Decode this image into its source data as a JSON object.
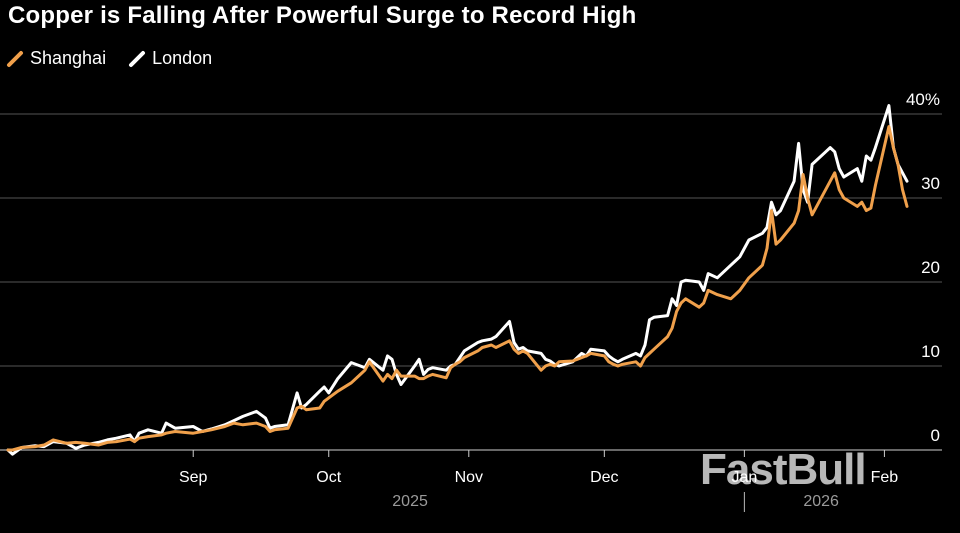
{
  "title": "Copper is Falling After Powerful Surge to Record High",
  "legend": [
    {
      "label": "Shanghai",
      "color": "#f0a04b"
    },
    {
      "label": "London",
      "color": "#ffffff"
    }
  ],
  "watermark": "FastBull",
  "chart_data": {
    "type": "line",
    "title": "Copper is Falling After Powerful Surge to Record High",
    "xlabel": "",
    "ylabel": "",
    "y_unit": "%",
    "ylim": [
      -2,
      42
    ],
    "y_ticks": [
      0,
      10,
      20,
      30,
      40
    ],
    "y_tick_labels": [
      "0",
      "10",
      "20",
      "30",
      "40%"
    ],
    "x_range": [
      "2025-07-22",
      "2026-02-06"
    ],
    "x_ticks": [
      {
        "date": "2025-09-01",
        "label": "Sep"
      },
      {
        "date": "2025-10-01",
        "label": "Oct"
      },
      {
        "date": "2025-11-01",
        "label": "Nov"
      },
      {
        "date": "2025-12-01",
        "label": "Dec"
      },
      {
        "date": "2026-01-01",
        "label": "Jan"
      },
      {
        "date": "2026-02-01",
        "label": "Feb"
      }
    ],
    "year_labels": [
      {
        "date": "2025-10-19",
        "label": "2025"
      },
      {
        "date": "2026-01-18",
        "label": "2026"
      }
    ],
    "year_divider": "2026-01-01",
    "grid": true,
    "series": [
      {
        "name": "London",
        "color": "#ffffff",
        "points": [
          [
            "2025-07-22",
            0
          ],
          [
            "2025-07-23",
            -0.5
          ],
          [
            "2025-07-25",
            0.3
          ],
          [
            "2025-07-28",
            0.5
          ],
          [
            "2025-07-30",
            0.4
          ],
          [
            "2025-08-01",
            1.0
          ],
          [
            "2025-08-04",
            0.8
          ],
          [
            "2025-08-06",
            0.2
          ],
          [
            "2025-08-08",
            0.6
          ],
          [
            "2025-08-11",
            0.9
          ],
          [
            "2025-08-13",
            1.2
          ],
          [
            "2025-08-15",
            1.4
          ],
          [
            "2025-08-18",
            1.8
          ],
          [
            "2025-08-19",
            1.0
          ],
          [
            "2025-08-20",
            2.0
          ],
          [
            "2025-08-22",
            2.4
          ],
          [
            "2025-08-25",
            2.0
          ],
          [
            "2025-08-26",
            3.2
          ],
          [
            "2025-08-28",
            2.6
          ],
          [
            "2025-09-01",
            2.8
          ],
          [
            "2025-09-03",
            2.2
          ],
          [
            "2025-09-05",
            2.5
          ],
          [
            "2025-09-08",
            3.0
          ],
          [
            "2025-09-10",
            3.5
          ],
          [
            "2025-09-12",
            4.0
          ],
          [
            "2025-09-15",
            4.6
          ],
          [
            "2025-09-17",
            3.8
          ],
          [
            "2025-09-18",
            2.6
          ],
          [
            "2025-09-19",
            2.8
          ],
          [
            "2025-09-22",
            3.0
          ],
          [
            "2025-09-24",
            6.8
          ],
          [
            "2025-09-25",
            5.0
          ],
          [
            "2025-09-26",
            5.4
          ],
          [
            "2025-09-29",
            7.0
          ],
          [
            "2025-09-30",
            7.5
          ],
          [
            "2025-10-01",
            6.8
          ],
          [
            "2025-10-03",
            8.5
          ],
          [
            "2025-10-06",
            10.4
          ],
          [
            "2025-10-08",
            10.0
          ],
          [
            "2025-10-09",
            9.8
          ],
          [
            "2025-10-10",
            10.8
          ],
          [
            "2025-10-13",
            9.5
          ],
          [
            "2025-10-14",
            11.2
          ],
          [
            "2025-10-15",
            10.8
          ],
          [
            "2025-10-16",
            9.0
          ],
          [
            "2025-10-17",
            7.8
          ],
          [
            "2025-10-20",
            10.0
          ],
          [
            "2025-10-21",
            10.8
          ],
          [
            "2025-10-22",
            9.0
          ],
          [
            "2025-10-23",
            9.6
          ],
          [
            "2025-10-24",
            9.8
          ],
          [
            "2025-10-27",
            9.5
          ],
          [
            "2025-10-28",
            10.0
          ],
          [
            "2025-10-29",
            10.2
          ],
          [
            "2025-10-30",
            11.0
          ],
          [
            "2025-10-31",
            11.8
          ],
          [
            "2025-11-03",
            12.8
          ],
          [
            "2025-11-04",
            13.0
          ],
          [
            "2025-11-06",
            13.2
          ],
          [
            "2025-11-07",
            13.5
          ],
          [
            "2025-11-10",
            15.3
          ],
          [
            "2025-11-11",
            12.8
          ],
          [
            "2025-11-12",
            12.0
          ],
          [
            "2025-11-13",
            12.2
          ],
          [
            "2025-11-14",
            11.8
          ],
          [
            "2025-11-17",
            11.5
          ],
          [
            "2025-11-18",
            10.8
          ],
          [
            "2025-11-19",
            10.6
          ],
          [
            "2025-11-20",
            10.2
          ],
          [
            "2025-11-21",
            10.0
          ],
          [
            "2025-11-24",
            10.5
          ],
          [
            "2025-11-25",
            11.0
          ],
          [
            "2025-11-26",
            11.5
          ],
          [
            "2025-11-27",
            11.2
          ],
          [
            "2025-11-28",
            12.0
          ],
          [
            "2025-12-01",
            11.8
          ],
          [
            "2025-12-02",
            11.2
          ],
          [
            "2025-12-03",
            10.8
          ],
          [
            "2025-12-04",
            10.5
          ],
          [
            "2025-12-05",
            10.8
          ],
          [
            "2025-12-08",
            11.5
          ],
          [
            "2025-12-09",
            11.2
          ],
          [
            "2025-12-10",
            12.5
          ],
          [
            "2025-12-11",
            15.5
          ],
          [
            "2025-12-12",
            15.8
          ],
          [
            "2025-12-15",
            16.0
          ],
          [
            "2025-12-16",
            18.0
          ],
          [
            "2025-12-17",
            17.2
          ],
          [
            "2025-12-18",
            20.0
          ],
          [
            "2025-12-19",
            20.2
          ],
          [
            "2025-12-22",
            20.0
          ],
          [
            "2025-12-23",
            19.0
          ],
          [
            "2025-12-24",
            21.0
          ],
          [
            "2025-12-26",
            20.5
          ],
          [
            "2025-12-29",
            22.0
          ],
          [
            "2025-12-30",
            22.5
          ],
          [
            "2025-12-31",
            23.0
          ],
          [
            "2026-01-02",
            25.0
          ],
          [
            "2026-01-05",
            25.8
          ],
          [
            "2026-01-06",
            26.5
          ],
          [
            "2026-01-07",
            29.5
          ],
          [
            "2026-01-08",
            28.0
          ],
          [
            "2026-01-09",
            28.5
          ],
          [
            "2026-01-12",
            32.0
          ],
          [
            "2026-01-13",
            36.5
          ],
          [
            "2026-01-14",
            31.0
          ],
          [
            "2026-01-15",
            29.5
          ],
          [
            "2026-01-16",
            34.0
          ],
          [
            "2026-01-19",
            35.5
          ],
          [
            "2026-01-20",
            36.0
          ],
          [
            "2026-01-21",
            35.5
          ],
          [
            "2026-01-22",
            33.5
          ],
          [
            "2026-01-23",
            32.5
          ],
          [
            "2026-01-26",
            33.5
          ],
          [
            "2026-01-27",
            32.0
          ],
          [
            "2026-01-28",
            35.0
          ],
          [
            "2026-01-29",
            34.5
          ],
          [
            "2026-01-30",
            36.0
          ],
          [
            "2026-02-02",
            41.0
          ],
          [
            "2026-02-03",
            36.0
          ],
          [
            "2026-02-04",
            34.0
          ],
          [
            "2026-02-05",
            33.0
          ],
          [
            "2026-02-06",
            32.0
          ]
        ]
      },
      {
        "name": "Shanghai",
        "color": "#f0a04b",
        "points": [
          [
            "2025-07-22",
            0
          ],
          [
            "2025-07-23",
            0.0
          ],
          [
            "2025-07-25",
            0.3
          ],
          [
            "2025-07-28",
            0.4
          ],
          [
            "2025-07-30",
            0.6
          ],
          [
            "2025-08-01",
            1.2
          ],
          [
            "2025-08-04",
            0.8
          ],
          [
            "2025-08-06",
            0.9
          ],
          [
            "2025-08-08",
            0.8
          ],
          [
            "2025-08-11",
            0.6
          ],
          [
            "2025-08-13",
            0.9
          ],
          [
            "2025-08-15",
            1.0
          ],
          [
            "2025-08-18",
            1.3
          ],
          [
            "2025-08-19",
            1.0
          ],
          [
            "2025-08-20",
            1.4
          ],
          [
            "2025-08-22",
            1.6
          ],
          [
            "2025-08-25",
            1.8
          ],
          [
            "2025-08-26",
            2.0
          ],
          [
            "2025-08-28",
            2.2
          ],
          [
            "2025-09-01",
            2.0
          ],
          [
            "2025-09-03",
            2.2
          ],
          [
            "2025-09-05",
            2.4
          ],
          [
            "2025-09-08",
            2.8
          ],
          [
            "2025-09-10",
            3.2
          ],
          [
            "2025-09-12",
            3.0
          ],
          [
            "2025-09-15",
            3.2
          ],
          [
            "2025-09-17",
            2.8
          ],
          [
            "2025-09-18",
            2.2
          ],
          [
            "2025-09-19",
            2.4
          ],
          [
            "2025-09-22",
            2.6
          ],
          [
            "2025-09-24",
            5.0
          ],
          [
            "2025-09-25",
            5.2
          ],
          [
            "2025-09-26",
            4.8
          ],
          [
            "2025-09-29",
            5.0
          ],
          [
            "2025-09-30",
            5.8
          ],
          [
            "2025-10-01",
            6.2
          ],
          [
            "2025-10-03",
            7.0
          ],
          [
            "2025-10-06",
            8.0
          ],
          [
            "2025-10-08",
            9.0
          ],
          [
            "2025-10-09",
            9.5
          ],
          [
            "2025-10-10",
            10.5
          ],
          [
            "2025-10-13",
            8.2
          ],
          [
            "2025-10-14",
            9.0
          ],
          [
            "2025-10-15",
            8.5
          ],
          [
            "2025-10-16",
            9.5
          ],
          [
            "2025-10-17",
            8.8
          ],
          [
            "2025-10-20",
            8.8
          ],
          [
            "2025-10-21",
            8.5
          ],
          [
            "2025-10-22",
            8.5
          ],
          [
            "2025-10-23",
            8.8
          ],
          [
            "2025-10-24",
            9.0
          ],
          [
            "2025-10-27",
            8.6
          ],
          [
            "2025-10-28",
            9.8
          ],
          [
            "2025-10-29",
            10.2
          ],
          [
            "2025-10-30",
            10.5
          ],
          [
            "2025-10-31",
            11.0
          ],
          [
            "2025-11-03",
            11.8
          ],
          [
            "2025-11-04",
            12.2
          ],
          [
            "2025-11-06",
            12.5
          ],
          [
            "2025-11-07",
            12.2
          ],
          [
            "2025-11-10",
            13.0
          ],
          [
            "2025-11-11",
            12.0
          ],
          [
            "2025-11-12",
            11.5
          ],
          [
            "2025-11-13",
            11.8
          ],
          [
            "2025-11-14",
            11.5
          ],
          [
            "2025-11-17",
            9.5
          ],
          [
            "2025-11-18",
            10.0
          ],
          [
            "2025-11-19",
            10.2
          ],
          [
            "2025-11-20",
            10.0
          ],
          [
            "2025-11-21",
            10.5
          ],
          [
            "2025-11-24",
            10.6
          ],
          [
            "2025-11-25",
            10.8
          ],
          [
            "2025-11-26",
            11.0
          ],
          [
            "2025-11-27",
            11.2
          ],
          [
            "2025-11-28",
            11.5
          ],
          [
            "2025-12-01",
            11.2
          ],
          [
            "2025-12-02",
            10.5
          ],
          [
            "2025-12-03",
            10.2
          ],
          [
            "2025-12-04",
            10.0
          ],
          [
            "2025-12-05",
            10.2
          ],
          [
            "2025-12-08",
            10.5
          ],
          [
            "2025-12-09",
            10.0
          ],
          [
            "2025-12-10",
            11.0
          ],
          [
            "2025-12-11",
            11.5
          ],
          [
            "2025-12-12",
            12.0
          ],
          [
            "2025-12-15",
            13.5
          ],
          [
            "2025-12-16",
            14.5
          ],
          [
            "2025-12-17",
            16.5
          ],
          [
            "2025-12-18",
            17.5
          ],
          [
            "2025-12-19",
            18.0
          ],
          [
            "2025-12-22",
            17.0
          ],
          [
            "2025-12-23",
            17.5
          ],
          [
            "2025-12-24",
            19.0
          ],
          [
            "2025-12-26",
            18.5
          ],
          [
            "2025-12-29",
            18.0
          ],
          [
            "2025-12-30",
            18.5
          ],
          [
            "2025-12-31",
            19.0
          ],
          [
            "2026-01-02",
            20.5
          ],
          [
            "2026-01-05",
            22.0
          ],
          [
            "2026-01-06",
            24.0
          ],
          [
            "2026-01-07",
            28.5
          ],
          [
            "2026-01-08",
            24.5
          ],
          [
            "2026-01-09",
            25.0
          ],
          [
            "2026-01-12",
            27.0
          ],
          [
            "2026-01-13",
            28.5
          ],
          [
            "2026-01-14",
            32.8
          ],
          [
            "2026-01-15",
            30.0
          ],
          [
            "2026-01-16",
            28.0
          ],
          [
            "2026-01-19",
            31.0
          ],
          [
            "2026-01-20",
            32.0
          ],
          [
            "2026-01-21",
            33.0
          ],
          [
            "2026-01-22",
            31.0
          ],
          [
            "2026-01-23",
            30.0
          ],
          [
            "2026-01-26",
            29.0
          ],
          [
            "2026-01-27",
            29.5
          ],
          [
            "2026-01-28",
            28.5
          ],
          [
            "2026-01-29",
            28.8
          ],
          [
            "2026-01-30",
            31.5
          ],
          [
            "2026-02-02",
            38.5
          ],
          [
            "2026-02-03",
            36.0
          ],
          [
            "2026-02-04",
            34.0
          ],
          [
            "2026-02-05",
            31.0
          ],
          [
            "2026-02-06",
            29.0
          ]
        ]
      }
    ]
  }
}
